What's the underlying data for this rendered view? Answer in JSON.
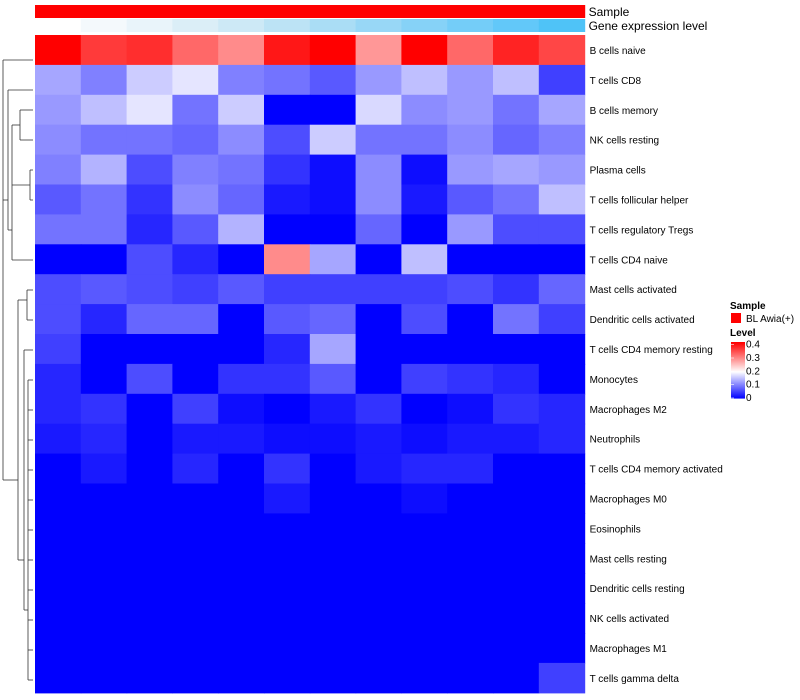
{
  "chart_data": {
    "type": "heatmap",
    "title": "",
    "rows": [
      "B cells naive",
      "T cells CD8",
      "B cells memory",
      "NK cells resting",
      "Plasma cells",
      "T cells follicular helper",
      "T cells regulatory  Tregs",
      "T cells CD4 naive",
      "Mast cells activated",
      "Dendritic cells activated",
      "T cells CD4 memory resting",
      "Monocytes",
      "Macrophages M2",
      "Neutrophils",
      "T cells CD4 memory activated",
      "Macrophages M0",
      "Eosinophils",
      "Mast cells resting",
      "Dendritic cells resting",
      "NK cells activated",
      "Macrophages M1",
      "T cells gamma delta"
    ],
    "columns_count": 12,
    "values": [
      [
        0.42,
        0.37,
        0.38,
        0.33,
        0.3,
        0.4,
        0.42,
        0.29,
        0.42,
        0.33,
        0.39,
        0.36
      ],
      [
        0.13,
        0.1,
        0.16,
        0.18,
        0.1,
        0.09,
        0.07,
        0.12,
        0.15,
        0.12,
        0.15,
        0.05
      ],
      [
        0.12,
        0.15,
        0.18,
        0.09,
        0.16,
        0.0,
        0.0,
        0.17,
        0.11,
        0.12,
        0.09,
        0.13
      ],
      [
        0.11,
        0.09,
        0.09,
        0.08,
        0.11,
        0.06,
        0.16,
        0.09,
        0.09,
        0.11,
        0.08,
        0.1
      ],
      [
        0.1,
        0.14,
        0.06,
        0.1,
        0.09,
        0.04,
        0.01,
        0.11,
        0.01,
        0.12,
        0.13,
        0.12
      ],
      [
        0.07,
        0.09,
        0.04,
        0.11,
        0.08,
        0.02,
        0.01,
        0.11,
        0.02,
        0.07,
        0.09,
        0.15
      ],
      [
        0.09,
        0.09,
        0.03,
        0.07,
        0.14,
        0.0,
        0.0,
        0.08,
        0.0,
        0.12,
        0.06,
        0.06
      ],
      [
        0.0,
        0.0,
        0.06,
        0.03,
        0.0,
        0.3,
        0.13,
        0.0,
        0.15,
        0.0,
        0.0,
        0.0
      ],
      [
        0.06,
        0.07,
        0.06,
        0.05,
        0.07,
        0.05,
        0.05,
        0.05,
        0.05,
        0.06,
        0.04,
        0.08
      ],
      [
        0.06,
        0.03,
        0.08,
        0.08,
        0.0,
        0.07,
        0.08,
        0.0,
        0.06,
        0.0,
        0.09,
        0.05
      ],
      [
        0.05,
        0.0,
        0.0,
        0.0,
        0.0,
        0.03,
        0.13,
        0.0,
        0.0,
        0.0,
        0.0,
        0.0
      ],
      [
        0.03,
        0.0,
        0.06,
        0.0,
        0.04,
        0.04,
        0.07,
        0.0,
        0.05,
        0.04,
        0.03,
        0.0
      ],
      [
        0.03,
        0.04,
        0.0,
        0.05,
        0.01,
        0.0,
        0.02,
        0.04,
        0.0,
        0.01,
        0.04,
        0.03
      ],
      [
        0.02,
        0.03,
        0.0,
        0.02,
        0.02,
        0.01,
        0.01,
        0.02,
        0.01,
        0.02,
        0.02,
        0.03
      ],
      [
        0.0,
        0.02,
        0.0,
        0.03,
        0.0,
        0.04,
        0.0,
        0.02,
        0.03,
        0.03,
        0.0,
        0.0
      ],
      [
        0.0,
        0.0,
        0.0,
        0.0,
        0.0,
        0.02,
        0.0,
        0.0,
        0.01,
        0.0,
        0.0,
        0.0
      ],
      [
        0.0,
        0.0,
        0.0,
        0.0,
        0.0,
        0.0,
        0.0,
        0.0,
        0.0,
        0.0,
        0.0,
        0.0
      ],
      [
        0.0,
        0.0,
        0.0,
        0.0,
        0.0,
        0.0,
        0.0,
        0.0,
        0.0,
        0.0,
        0.0,
        0.0
      ],
      [
        0.0,
        0.0,
        0.0,
        0.0,
        0.0,
        0.0,
        0.0,
        0.0,
        0.0,
        0.0,
        0.0,
        0.0
      ],
      [
        0.0,
        0.0,
        0.0,
        0.0,
        0.0,
        0.0,
        0.0,
        0.0,
        0.0,
        0.0,
        0.0,
        0.0
      ],
      [
        0.0,
        0.0,
        0.0,
        0.0,
        0.0,
        0.0,
        0.0,
        0.0,
        0.0,
        0.0,
        0.0,
        0.0
      ],
      [
        0.0,
        0.0,
        0.0,
        0.0,
        0.0,
        0.0,
        0.0,
        0.0,
        0.0,
        0.0,
        0.0,
        0.05
      ]
    ],
    "top_annotations": [
      {
        "label": "Sample",
        "colors": [
          "#FF0000",
          "#FF0000",
          "#FF0000",
          "#FF0000",
          "#FF0000",
          "#FF0000",
          "#FF0000",
          "#FF0000",
          "#FF0000",
          "#FF0000",
          "#FF0000",
          "#FF0000"
        ]
      },
      {
        "label": "Gene expression level",
        "colors": [
          "#FFFFFF",
          "#F4F9FC",
          "#E9F4FA",
          "#DBEEF7",
          "#CDE9F6",
          "#BCE3F5",
          "#AADDF5",
          "#98D7F6",
          "#86D2F7",
          "#74CDF8",
          "#62C8F9",
          "#4FC3F7"
        ]
      }
    ],
    "legend": {
      "sample_title": "Sample",
      "sample_entries": [
        {
          "label": "BL Awia(+)",
          "color": "#FF0000"
        }
      ],
      "level_title": "Level",
      "level_range": [
        0,
        0.42
      ],
      "level_ticks": [
        0,
        0.1,
        0.2,
        0.3,
        0.4
      ],
      "level_tick_labels": [
        "0",
        "0.1",
        "0.2",
        "0.3",
        "0.4"
      ],
      "colormap": [
        "#0000FF",
        "#FFFFFF",
        "#FF0000"
      ],
      "colormap_mid": 0.2
    },
    "row_dendrogram": true
  }
}
